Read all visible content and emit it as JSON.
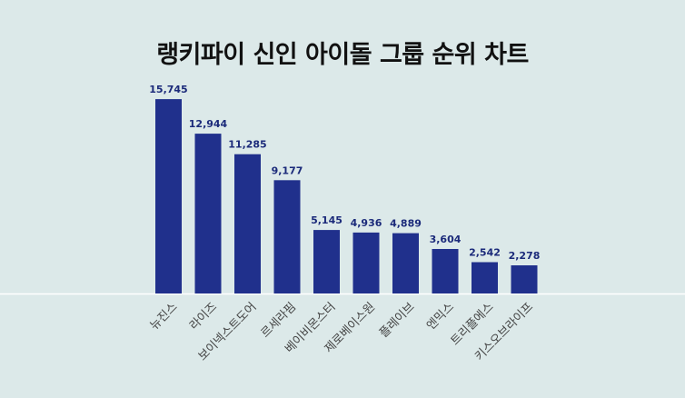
{
  "colors": {
    "background": "#dce9e9",
    "bar": "#20308c",
    "value_label": "#1b2a7a",
    "axis_line": "#ffffff",
    "tick_label": "#444444",
    "title": "#111111"
  },
  "chart_data": {
    "type": "bar",
    "title": "랭키파이 신인 아이돌 그룹 순위 차트",
    "xlabel": "",
    "ylabel": "",
    "ylim": [
      0,
      17000
    ],
    "grid": false,
    "categories": [
      "뉴진스",
      "라이즈",
      "보이넥스트도어",
      "르세라핌",
      "베이비몬스터",
      "제로베이스원",
      "플레이브",
      "엔믹스",
      "트리플에스",
      "키스오브라이프"
    ],
    "values": [
      15745,
      12944,
      11285,
      9177,
      5145,
      4936,
      4889,
      3604,
      2542,
      2278
    ],
    "value_labels": [
      "15,745",
      "12,944",
      "11,285",
      "9,177",
      "5,145",
      "4,936",
      "4,889",
      "3,604",
      "2,542",
      "2,278"
    ]
  }
}
